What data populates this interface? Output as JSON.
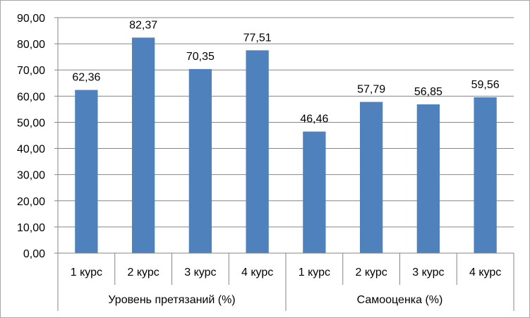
{
  "chart_data": {
    "type": "bar",
    "title": "",
    "xlabel": "",
    "ylabel": "",
    "ylim": [
      0,
      90
    ],
    "y_tick_step": 10,
    "y_tick_labels": [
      "0,00",
      "10,00",
      "20,00",
      "30,00",
      "40,00",
      "50,00",
      "60,00",
      "70,00",
      "80,00",
      "90,00"
    ],
    "grid": true,
    "legend": "none",
    "bar_color": "#4f81bd",
    "grid_color": "#868686",
    "groups": [
      {
        "label": "Уровень претязаний (%)",
        "categories": [
          "1 курс",
          "2 курс",
          "3 курс",
          "4 курс"
        ],
        "values": [
          62.36,
          82.37,
          70.35,
          77.51
        ],
        "value_labels": [
          "62,36",
          "82,37",
          "70,35",
          "77,51"
        ]
      },
      {
        "label": "Самооценка (%)",
        "categories": [
          "1 курс",
          "2 курс",
          "3 курс",
          "4 курс"
        ],
        "values": [
          46.46,
          57.79,
          56.85,
          59.56
        ],
        "value_labels": [
          "46,46",
          "57,79",
          "56,85",
          "59,56"
        ]
      }
    ]
  }
}
